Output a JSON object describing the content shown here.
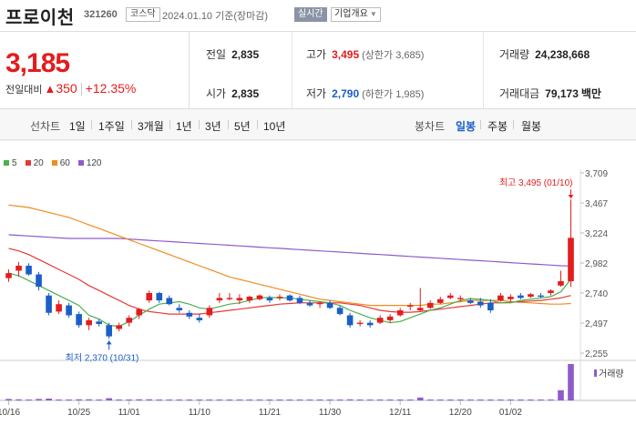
{
  "header": {
    "stock_name": "프로이천",
    "stock_code": "321260",
    "market": "코스닥",
    "date_text": "2024.01.10 기준(장마감)",
    "realtime_label": "실시간",
    "company_label": "기업개요"
  },
  "summary": {
    "current_price": "3,185",
    "change_label": "전일대비",
    "change_icon": "up-triangle-icon",
    "change_value": "350",
    "change_rate": "+12.35%",
    "prev_close_label": "전일",
    "prev_close": "2,835",
    "high_label": "고가",
    "high": "3,495",
    "upper_limit": "(상한가 3,685)",
    "volume_label": "거래량",
    "volume": "24,238,668",
    "open_label": "시가",
    "open": "2,835",
    "low_label": "저가",
    "low": "2,790",
    "lower_limit": "(하한가 1,985)",
    "amount_label": "거래대금",
    "amount": "79,173",
    "amount_unit": "백만"
  },
  "periods": {
    "label": "선차트",
    "tabs": [
      "1일",
      "1주일",
      "3개월",
      "1년",
      "3년",
      "5년",
      "10년"
    ],
    "candle_label": "봉차트",
    "candle_tabs": [
      "일봉",
      "주봉",
      "월봉"
    ],
    "active_candle": "일봉"
  },
  "colors": {
    "up": "#e21d1d",
    "down": "#1b5ec7",
    "ma5": "#4caf50",
    "ma20": "#e53935",
    "ma60": "#ef8c20",
    "ma120": "#8e5cc8"
  },
  "chart_data": {
    "type": "candlestick",
    "legend": [
      {
        "name": "5",
        "color": "#4caf50"
      },
      {
        "name": "20",
        "color": "#e53935"
      },
      {
        "name": "60",
        "color": "#ef8c20"
      },
      {
        "name": "120",
        "color": "#8e5cc8"
      }
    ],
    "y_ticks": [
      "3,709",
      "3,467",
      "3,224",
      "2,982",
      "2,740",
      "2,497",
      "2,255"
    ],
    "ylim": [
      2255,
      3709
    ],
    "x_labels": [
      "10/16",
      "10/25",
      "11/01",
      "11/10",
      "11/21",
      "11/30",
      "12/11",
      "12/20",
      "01/02"
    ],
    "x_label_index": [
      0,
      7,
      12,
      19,
      26,
      32,
      39,
      45,
      50
    ],
    "high_annotation": "최고 3,495 (01/10)",
    "low_annotation": "최저 2,370 (10/31)",
    "volume_label": "거래량",
    "candles": [
      {
        "o": 2860,
        "h": 2930,
        "l": 2830,
        "c": 2900
      },
      {
        "o": 2920,
        "h": 2990,
        "l": 2870,
        "c": 2960
      },
      {
        "o": 2960,
        "h": 2980,
        "l": 2880,
        "c": 2890
      },
      {
        "o": 2890,
        "h": 2910,
        "l": 2760,
        "c": 2790
      },
      {
        "o": 2720,
        "h": 2740,
        "l": 2560,
        "c": 2580
      },
      {
        "o": 2590,
        "h": 2680,
        "l": 2570,
        "c": 2650
      },
      {
        "o": 2640,
        "h": 2660,
        "l": 2540,
        "c": 2560
      },
      {
        "o": 2570,
        "h": 2590,
        "l": 2460,
        "c": 2480
      },
      {
        "o": 2480,
        "h": 2540,
        "l": 2440,
        "c": 2520
      },
      {
        "o": 2510,
        "h": 2530,
        "l": 2470,
        "c": 2490
      },
      {
        "o": 2480,
        "h": 2500,
        "l": 2370,
        "c": 2390
      },
      {
        "o": 2450,
        "h": 2500,
        "l": 2430,
        "c": 2480
      },
      {
        "o": 2500,
        "h": 2560,
        "l": 2470,
        "c": 2540
      },
      {
        "o": 2560,
        "h": 2620,
        "l": 2530,
        "c": 2610
      },
      {
        "o": 2680,
        "h": 2760,
        "l": 2660,
        "c": 2740
      },
      {
        "o": 2740,
        "h": 2750,
        "l": 2660,
        "c": 2680
      },
      {
        "o": 2700,
        "h": 2720,
        "l": 2640,
        "c": 2650
      },
      {
        "o": 2620,
        "h": 2650,
        "l": 2580,
        "c": 2600
      },
      {
        "o": 2580,
        "h": 2600,
        "l": 2530,
        "c": 2550
      },
      {
        "o": 2540,
        "h": 2570,
        "l": 2500,
        "c": 2520
      },
      {
        "o": 2560,
        "h": 2640,
        "l": 2540,
        "c": 2620
      },
      {
        "o": 2680,
        "h": 2740,
        "l": 2660,
        "c": 2700
      },
      {
        "o": 2690,
        "h": 2740,
        "l": 2680,
        "c": 2700
      },
      {
        "o": 2680,
        "h": 2730,
        "l": 2650,
        "c": 2700
      },
      {
        "o": 2680,
        "h": 2720,
        "l": 2660,
        "c": 2710
      },
      {
        "o": 2690,
        "h": 2730,
        "l": 2680,
        "c": 2720
      },
      {
        "o": 2700,
        "h": 2720,
        "l": 2660,
        "c": 2680
      },
      {
        "o": 2700,
        "h": 2730,
        "l": 2680,
        "c": 2710
      },
      {
        "o": 2720,
        "h": 2730,
        "l": 2670,
        "c": 2680
      },
      {
        "o": 2700,
        "h": 2720,
        "l": 2650,
        "c": 2660
      },
      {
        "o": 2660,
        "h": 2680,
        "l": 2630,
        "c": 2640
      },
      {
        "o": 2650,
        "h": 2670,
        "l": 2620,
        "c": 2660
      },
      {
        "o": 2660,
        "h": 2680,
        "l": 2610,
        "c": 2620
      },
      {
        "o": 2620,
        "h": 2640,
        "l": 2560,
        "c": 2570
      },
      {
        "o": 2560,
        "h": 2580,
        "l": 2460,
        "c": 2480
      },
      {
        "o": 2490,
        "h": 2520,
        "l": 2470,
        "c": 2500
      },
      {
        "o": 2500,
        "h": 2520,
        "l": 2460,
        "c": 2480
      },
      {
        "o": 2500,
        "h": 2560,
        "l": 2490,
        "c": 2540
      },
      {
        "o": 2520,
        "h": 2570,
        "l": 2500,
        "c": 2550
      },
      {
        "o": 2560,
        "h": 2620,
        "l": 2550,
        "c": 2600
      },
      {
        "o": 2630,
        "h": 2660,
        "l": 2600,
        "c": 2640
      },
      {
        "o": 2600,
        "h": 2780,
        "l": 2590,
        "c": 2620
      },
      {
        "o": 2620,
        "h": 2680,
        "l": 2610,
        "c": 2660
      },
      {
        "o": 2660,
        "h": 2710,
        "l": 2650,
        "c": 2690
      },
      {
        "o": 2700,
        "h": 2740,
        "l": 2690,
        "c": 2720
      },
      {
        "o": 2690,
        "h": 2720,
        "l": 2670,
        "c": 2700
      },
      {
        "o": 2680,
        "h": 2700,
        "l": 2650,
        "c": 2660
      },
      {
        "o": 2670,
        "h": 2700,
        "l": 2620,
        "c": 2640
      },
      {
        "o": 2660,
        "h": 2690,
        "l": 2580,
        "c": 2600
      },
      {
        "o": 2680,
        "h": 2740,
        "l": 2670,
        "c": 2720
      },
      {
        "o": 2690,
        "h": 2730,
        "l": 2670,
        "c": 2710
      },
      {
        "o": 2720,
        "h": 2740,
        "l": 2690,
        "c": 2700
      },
      {
        "o": 2710,
        "h": 2740,
        "l": 2700,
        "c": 2730
      },
      {
        "o": 2720,
        "h": 2740,
        "l": 2700,
        "c": 2710
      },
      {
        "o": 2740,
        "h": 2770,
        "l": 2720,
        "c": 2760
      },
      {
        "o": 2800,
        "h": 2920,
        "l": 2790,
        "c": 2835
      },
      {
        "o": 2835,
        "h": 3495,
        "l": 2790,
        "c": 3185
      }
    ],
    "ma5": [
      2900,
      2880,
      2840,
      2800,
      2760,
      2720,
      2680,
      2640,
      2560,
      2530,
      2480,
      2470,
      2510,
      2560,
      2610,
      2650,
      2660,
      2670,
      2650,
      2620,
      2610,
      2630,
      2650,
      2660,
      2680,
      2700,
      2705,
      2700,
      2700,
      2690,
      2680,
      2670,
      2660,
      2640,
      2600,
      2570,
      2540,
      2520,
      2500,
      2510,
      2540,
      2570,
      2600,
      2620,
      2650,
      2680,
      2695,
      2690,
      2680,
      2660,
      2660,
      2680,
      2690,
      2700,
      2710,
      2750,
      2850
    ],
    "ma20": [
      3100,
      3080,
      3050,
      3010,
      2970,
      2930,
      2890,
      2850,
      2800,
      2760,
      2720,
      2680,
      2640,
      2610,
      2590,
      2580,
      2570,
      2570,
      2570,
      2570,
      2580,
      2590,
      2600,
      2610,
      2620,
      2630,
      2640,
      2650,
      2655,
      2660,
      2660,
      2660,
      2660,
      2660,
      2650,
      2640,
      2620,
      2600,
      2590,
      2585,
      2585,
      2590,
      2600,
      2610,
      2620,
      2630,
      2640,
      2650,
      2660,
      2660,
      2665,
      2670,
      2675,
      2680,
      2690,
      2700,
      2720
    ],
    "ma60": [
      3450,
      3440,
      3430,
      3410,
      3390,
      3370,
      3350,
      3320,
      3290,
      3260,
      3230,
      3200,
      3170,
      3140,
      3110,
      3080,
      3050,
      3020,
      2990,
      2960,
      2930,
      2900,
      2870,
      2850,
      2830,
      2810,
      2790,
      2770,
      2750,
      2730,
      2710,
      2690,
      2680,
      2670,
      2660,
      2650,
      2640,
      2640,
      2640,
      2640,
      2640,
      2640,
      2650,
      2650,
      2660,
      2670,
      2680,
      2680,
      2680,
      2680,
      2670,
      2665,
      2660,
      2655,
      2650,
      2650,
      2655
    ],
    "ma120": [
      3210,
      3205,
      3200,
      3195,
      3190,
      3185,
      3180,
      3180,
      3180,
      3180,
      3180,
      3180,
      3175,
      3170,
      3165,
      3160,
      3155,
      3150,
      3145,
      3140,
      3135,
      3130,
      3125,
      3120,
      3115,
      3110,
      3105,
      3100,
      3095,
      3090,
      3085,
      3080,
      3075,
      3070,
      3065,
      3060,
      3055,
      3050,
      3045,
      3040,
      3035,
      3030,
      3025,
      3020,
      3015,
      3010,
      3005,
      3000,
      2995,
      2990,
      2985,
      2980,
      2975,
      2970,
      2965,
      2960,
      2958
    ],
    "volume": [
      0.04,
      0.03,
      0.02,
      0.04,
      0.05,
      0.02,
      0.02,
      0.03,
      0.03,
      0.02,
      0.06,
      0.02,
      0.02,
      0.03,
      0.03,
      0.02,
      0.02,
      0.02,
      0.02,
      0.02,
      0.02,
      0.02,
      0.02,
      0.02,
      0.02,
      0.02,
      0.02,
      0.02,
      0.02,
      0.02,
      0.02,
      0.02,
      0.02,
      0.02,
      0.03,
      0.02,
      0.02,
      0.02,
      0.02,
      0.02,
      0.02,
      0.08,
      0.02,
      0.02,
      0.02,
      0.02,
      0.02,
      0.02,
      0.02,
      0.02,
      0.02,
      0.02,
      0.02,
      0.02,
      0.02,
      0.28,
      1.0
    ]
  }
}
